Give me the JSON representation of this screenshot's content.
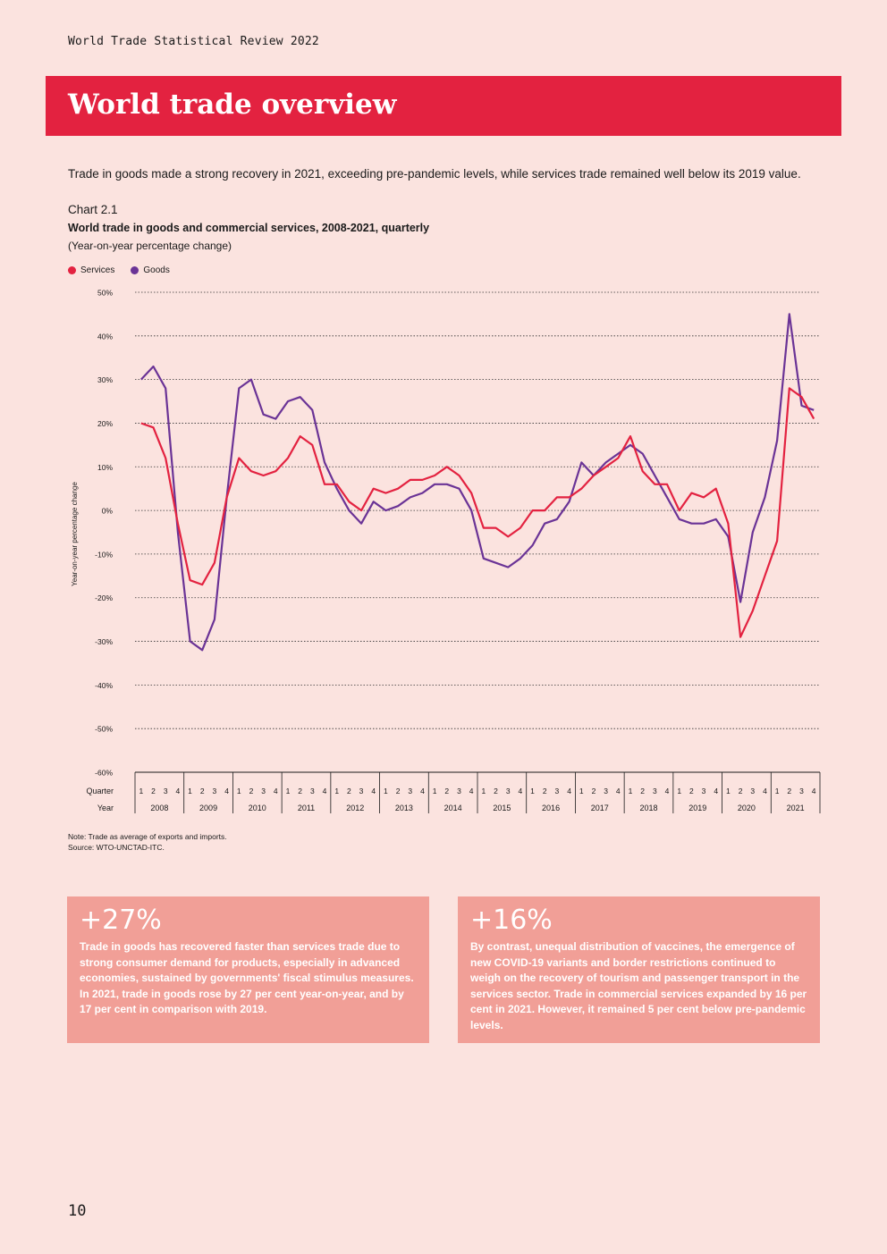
{
  "header": {
    "running_title": "World Trade Statistical Review 2022"
  },
  "section": {
    "title": "World trade overview"
  },
  "intro": "Trade in goods made a strong recovery in 2021, exceeding pre-pandemic levels, while services trade remained well below its 2019 value.",
  "chart_label": "Chart 2.1",
  "colors": {
    "services": "#e32240",
    "goods": "#6a3396",
    "banner": "#e32240",
    "box": "#f19f97"
  },
  "chart_data": {
    "type": "line",
    "title": "World trade in goods and commercial services, 2008-2021, quarterly",
    "subtitle": "(Year-on-year percentage change)",
    "ylabel": "Year-on-year percentage change",
    "quarter_label": "Quarter",
    "year_label": "Year",
    "ylim": [
      -60,
      50
    ],
    "yticks": [
      50,
      40,
      30,
      20,
      10,
      0,
      -10,
      -20,
      -30,
      -40,
      -50,
      -60
    ],
    "ytick_labels": [
      "50%",
      "40%",
      "30%",
      "20%",
      "10%",
      "0%",
      "-10%",
      "-20%",
      "-30%",
      "-40%",
      "-50%",
      "-60%"
    ],
    "quarters": [
      "1",
      "2",
      "3",
      "4"
    ],
    "years": [
      "2008",
      "2009",
      "2010",
      "2011",
      "2012",
      "2013",
      "2014",
      "2015",
      "2016",
      "2017",
      "2018",
      "2019",
      "2020",
      "2021"
    ],
    "legend_position": "top-left",
    "series": [
      {
        "name": "Services",
        "values": [
          20,
          19,
          12,
          -3,
          -16,
          -17,
          -12,
          3,
          12,
          9,
          8,
          9,
          12,
          17,
          15,
          6,
          6,
          2,
          0,
          5,
          4,
          5,
          7,
          7,
          8,
          10,
          8,
          4,
          -4,
          -4,
          -6,
          -4,
          0,
          0,
          3,
          3,
          5,
          8,
          10,
          12,
          17,
          9,
          6,
          6,
          0,
          4,
          3,
          5,
          -3,
          -29,
          -23,
          -15,
          -7,
          28,
          26,
          21
        ]
      },
      {
        "name": "Goods",
        "values": [
          30,
          33,
          28,
          -5,
          -30,
          -32,
          -25,
          3,
          28,
          30,
          22,
          21,
          25,
          26,
          23,
          11,
          5,
          0,
          -3,
          2,
          0,
          1,
          3,
          4,
          6,
          6,
          5,
          0,
          -11,
          -12,
          -13,
          -11,
          -8,
          -3,
          -2,
          2,
          11,
          8,
          11,
          13,
          15,
          13,
          8,
          3,
          -2,
          -3,
          -3,
          -2,
          -6,
          -21,
          -5,
          3,
          16,
          45,
          24,
          23
        ]
      }
    ]
  },
  "notes": {
    "note": "Note: Trade as average of exports and imports.",
    "source": "Source: WTO-UNCTAD-ITC."
  },
  "stat_boxes": [
    {
      "value": "+27%",
      "text": "Trade in goods has recovered faster than services trade due to strong consumer demand for products, especially in advanced economies, sustained by governments' fiscal stimulus measures. In 2021, trade in goods rose by 27 per cent year-on-year, and by 17 per cent in comparison with 2019."
    },
    {
      "value": "+16%",
      "text": "By contrast, unequal distribution of vaccines, the emergence of new COVID-19 variants and border restrictions continued to weigh on the recovery of tourism and passenger transport in the services sector. Trade in commercial services expanded by 16 per cent in 2021. However, it remained 5 per cent below pre-pandemic levels."
    }
  ],
  "page_number": "10"
}
